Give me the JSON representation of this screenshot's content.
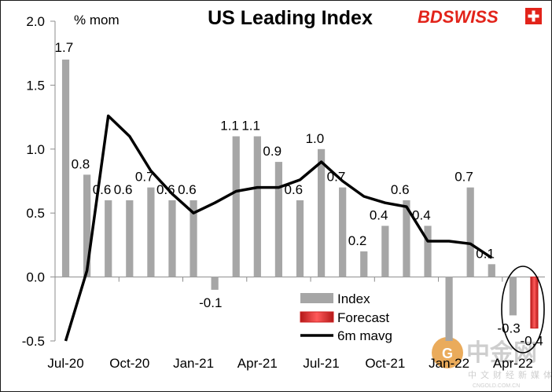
{
  "header": {
    "title": "US Leading Index",
    "unit": "% mom",
    "logo": "BDSWISS"
  },
  "watermark": {
    "name": "中金网",
    "sub": "中文财经新媒体",
    "url": "CNGOLD.COM.CN"
  },
  "colors": {
    "index_bar": "#a6a6a6",
    "forecast_bar": "#e03a3a",
    "mavg_line": "#000000",
    "logo_red": "#e2231a"
  },
  "chart_data": {
    "type": "bar",
    "title": "US Leading Index",
    "ylabel": "% mom",
    "ylim": [
      -0.5,
      2.0
    ],
    "yticks": [
      "2.0",
      "1.5",
      "1.0",
      "0.5",
      "0.0",
      "-0.5"
    ],
    "ytick_values": [
      2.0,
      1.5,
      1.0,
      0.5,
      0.0,
      -0.5
    ],
    "grid": false,
    "legend_position": "bottom-center",
    "categories": [
      "Jul-20",
      "Aug-20",
      "Sep-20",
      "Oct-20",
      "Nov-20",
      "Dec-20",
      "Jan-21",
      "Feb-21",
      "Mar-21",
      "Apr-21",
      "May-21",
      "Jun-21",
      "Jul-21",
      "Aug-21",
      "Sep-21",
      "Oct-21",
      "Nov-21",
      "Dec-21",
      "Jan-22",
      "Feb-22",
      "Mar-22",
      "Apr-22",
      "May-22"
    ],
    "xtick_labels": [
      {
        "index": 0,
        "label": "Jul-20"
      },
      {
        "index": 3,
        "label": "Oct-20"
      },
      {
        "index": 6,
        "label": "Jan-21"
      },
      {
        "index": 9,
        "label": "Apr-21"
      },
      {
        "index": 12,
        "label": "Jul-21"
      },
      {
        "index": 15,
        "label": "Oct-21"
      },
      {
        "index": 18,
        "label": "Jan-22"
      },
      {
        "index": 21,
        "label": "Apr-22"
      }
    ],
    "series": [
      {
        "name": "Index",
        "type": "bar",
        "values": [
          1.7,
          0.8,
          0.6,
          0.6,
          0.7,
          0.6,
          0.6,
          -0.1,
          1.1,
          1.1,
          0.9,
          0.6,
          1.0,
          0.7,
          0.2,
          0.4,
          0.6,
          0.4,
          -0.5,
          0.7,
          0.1,
          -0.3,
          null
        ],
        "labels": [
          "1.7",
          "0.8",
          "0.6",
          "0.6",
          "0.7",
          "0.6",
          "0.6",
          "-0.1",
          "1.1",
          "1.1",
          "0.9",
          "0.6",
          "1.0",
          "0.7",
          "0.2",
          "0.4",
          "0.6",
          "0.4",
          "",
          "0.7",
          "0.1",
          "-0.3",
          ""
        ]
      },
      {
        "name": "Forecast",
        "type": "bar",
        "values": [
          null,
          null,
          null,
          null,
          null,
          null,
          null,
          null,
          null,
          null,
          null,
          null,
          null,
          null,
          null,
          null,
          null,
          null,
          null,
          null,
          null,
          null,
          -0.4
        ],
        "labels": [
          "",
          "",
          "",
          "",
          "",
          "",
          "",
          "",
          "",
          "",
          "",
          "",
          "",
          "",
          "",
          "",
          "",
          "",
          "",
          "",
          "",
          "",
          "-0.4"
        ]
      },
      {
        "name": "6m mavg",
        "type": "line",
        "values": [
          -0.55,
          0.05,
          1.26,
          1.1,
          0.83,
          0.65,
          0.5,
          0.58,
          0.67,
          0.7,
          0.7,
          0.76,
          0.9,
          0.75,
          0.63,
          0.58,
          0.55,
          0.28,
          0.28,
          0.26,
          0.15,
          null,
          null
        ]
      }
    ]
  }
}
